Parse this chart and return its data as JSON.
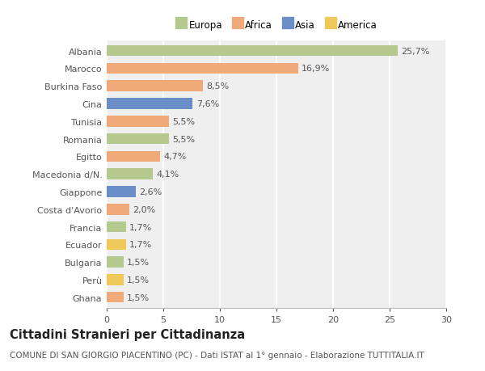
{
  "categories": [
    "Albania",
    "Marocco",
    "Burkina Faso",
    "Cina",
    "Tunisia",
    "Romania",
    "Egitto",
    "Macedonia d/N.",
    "Giappone",
    "Costa d'Avorio",
    "Francia",
    "Ecuador",
    "Bulgaria",
    "Perù",
    "Ghana"
  ],
  "values": [
    25.7,
    16.9,
    8.5,
    7.6,
    5.5,
    5.5,
    4.7,
    4.1,
    2.6,
    2.0,
    1.7,
    1.7,
    1.5,
    1.5,
    1.5
  ],
  "labels": [
    "25,7%",
    "16,9%",
    "8,5%",
    "7,6%",
    "5,5%",
    "5,5%",
    "4,7%",
    "4,1%",
    "2,6%",
    "2,0%",
    "1,7%",
    "1,7%",
    "1,5%",
    "1,5%",
    "1,5%"
  ],
  "continents": [
    "Europa",
    "Africa",
    "Africa",
    "Asia",
    "Africa",
    "Europa",
    "Africa",
    "Europa",
    "Asia",
    "Africa",
    "Europa",
    "America",
    "Europa",
    "America",
    "Africa"
  ],
  "colors": {
    "Europa": "#b5c98e",
    "Africa": "#f0aa7a",
    "Asia": "#6a8fc8",
    "America": "#f0c85a"
  },
  "legend_order": [
    "Europa",
    "Africa",
    "Asia",
    "America"
  ],
  "xlim": [
    0,
    30
  ],
  "xticks": [
    0,
    5,
    10,
    15,
    20,
    25,
    30
  ],
  "title": "Cittadini Stranieri per Cittadinanza",
  "subtitle": "COMUNE DI SAN GIORGIO PIACENTINO (PC) - Dati ISTAT al 1° gennaio - Elaborazione TUTTITALIA.IT",
  "background_color": "#ffffff",
  "plot_bg_color": "#efefef",
  "grid_color": "#ffffff",
  "bar_height": 0.62,
  "title_fontsize": 10.5,
  "subtitle_fontsize": 7.5,
  "label_fontsize": 8,
  "tick_fontsize": 8,
  "legend_fontsize": 8.5
}
